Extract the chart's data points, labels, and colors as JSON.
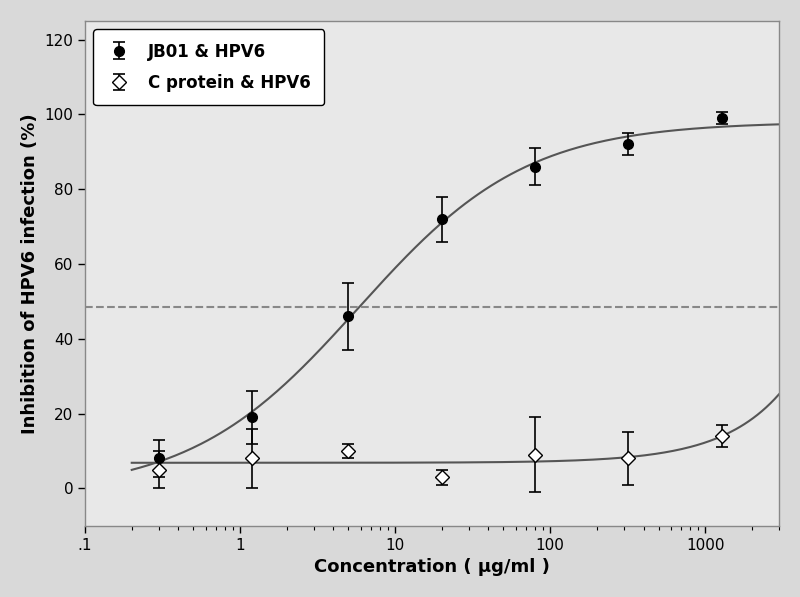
{
  "jb01_x": [
    0.3,
    1.2,
    5,
    20,
    80,
    320,
    1280
  ],
  "jb01_y": [
    8,
    19,
    46,
    72,
    86,
    92,
    99
  ],
  "jb01_yerr": [
    5,
    7,
    9,
    6,
    5,
    3,
    1.5
  ],
  "cprot_x": [
    0.3,
    1.2,
    5,
    20,
    80,
    320,
    1280
  ],
  "cprot_y": [
    5,
    8,
    10,
    3,
    9,
    8,
    14
  ],
  "cprot_yerr": [
    5,
    8,
    2,
    2,
    10,
    7,
    3
  ],
  "xlabel": "Concentration ( μg/ml )",
  "ylabel": "Inhibition of HPV6 infection (%)",
  "legend_jb01": "JB01 & HPV6",
  "legend_cprot": "C protein & HPV6",
  "ylim": [
    -10,
    125
  ],
  "yticks": [
    0,
    20,
    40,
    60,
    80,
    100,
    120
  ],
  "dashed_line_y": 48.5,
  "xlim": [
    0.2,
    3000
  ],
  "bg_color": "#d9d9d9",
  "plot_bg_color": "#e8e8e8",
  "line_color": "#555555",
  "dashed_color": "#888888"
}
